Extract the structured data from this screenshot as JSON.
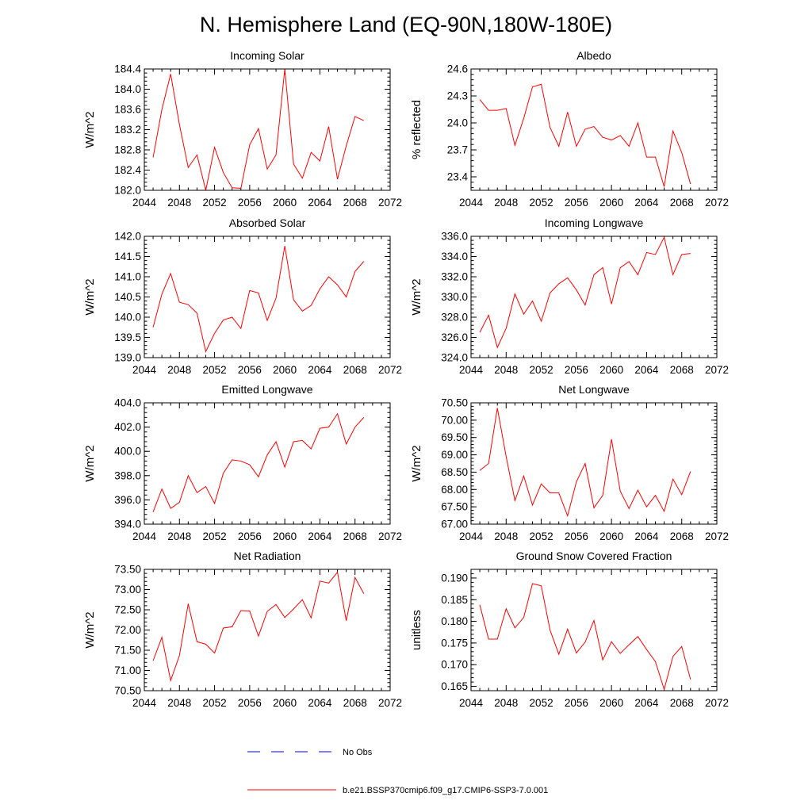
{
  "figure": {
    "title": "N. Hemisphere Land (EQ-90N,180W-180E)",
    "series_color": "#ff0000",
    "obs_color": "#0000ff"
  },
  "legend": {
    "items": [
      {
        "label": "No Obs",
        "color": "#0000ff",
        "style": "dashed"
      },
      {
        "label": "b.e21.BSSP370cmip6.f09_g17.CMIP6-SSP3-7.0.001",
        "color": "#ff0000",
        "style": "solid"
      }
    ]
  },
  "chart_data": [
    {
      "type": "line",
      "title": "Incoming Solar",
      "ylabel": "W/m^2",
      "xlim": [
        2044,
        2072
      ],
      "ylim": [
        182.0,
        184.4
      ],
      "xticks": [
        2044,
        2048,
        2052,
        2056,
        2060,
        2064,
        2068,
        2072
      ],
      "yticks": [
        182.0,
        182.4,
        182.8,
        183.2,
        183.6,
        184.0,
        184.4
      ],
      "ytick_decimals": 1,
      "x": [
        2045,
        2046,
        2047,
        2048,
        2049,
        2050,
        2051,
        2052,
        2053,
        2054,
        2055,
        2056,
        2057,
        2058,
        2059,
        2060,
        2061,
        2062,
        2063,
        2064,
        2065,
        2066,
        2067,
        2068,
        2069
      ],
      "values": [
        182.65,
        183.6,
        184.3,
        183.3,
        182.45,
        182.7,
        182.0,
        182.85,
        182.35,
        182.05,
        182.04,
        182.9,
        183.22,
        182.42,
        182.7,
        184.4,
        182.52,
        182.24,
        182.75,
        182.58,
        183.26,
        182.22,
        182.88,
        183.46,
        183.38
      ]
    },
    {
      "type": "line",
      "title": "Albedo",
      "ylabel": "% reflected",
      "xlim": [
        2044,
        2072
      ],
      "ylim": [
        23.25,
        24.6
      ],
      "xticks": [
        2044,
        2048,
        2052,
        2056,
        2060,
        2064,
        2068,
        2072
      ],
      "yticks": [
        23.4,
        23.7,
        24.0,
        24.3,
        24.6
      ],
      "ytick_decimals": 1,
      "x": [
        2045,
        2046,
        2047,
        2048,
        2049,
        2050,
        2051,
        2052,
        2053,
        2054,
        2055,
        2056,
        2057,
        2058,
        2059,
        2060,
        2061,
        2062,
        2063,
        2064,
        2065,
        2066,
        2067,
        2068,
        2069
      ],
      "values": [
        24.26,
        24.14,
        24.14,
        24.16,
        23.75,
        24.05,
        24.4,
        24.43,
        23.95,
        23.74,
        24.12,
        23.74,
        23.93,
        23.96,
        23.84,
        23.81,
        23.86,
        23.74,
        24.0,
        23.62,
        23.62,
        23.29,
        23.91,
        23.67,
        23.32
      ]
    },
    {
      "type": "line",
      "title": "Absorbed Solar",
      "ylabel": "W/m^2",
      "xlim": [
        2044,
        2072
      ],
      "ylim": [
        139.0,
        142.0
      ],
      "xticks": [
        2044,
        2048,
        2052,
        2056,
        2060,
        2064,
        2068,
        2072
      ],
      "yticks": [
        139.0,
        139.5,
        140.0,
        140.5,
        141.0,
        141.5,
        142.0
      ],
      "ytick_decimals": 1,
      "x": [
        2045,
        2046,
        2047,
        2048,
        2049,
        2050,
        2051,
        2052,
        2053,
        2054,
        2055,
        2056,
        2057,
        2058,
        2059,
        2060,
        2061,
        2062,
        2063,
        2064,
        2065,
        2066,
        2067,
        2068,
        2069
      ],
      "values": [
        139.75,
        140.57,
        141.08,
        140.37,
        140.31,
        140.1,
        139.15,
        139.6,
        139.93,
        140.0,
        139.72,
        140.66,
        140.6,
        139.92,
        140.47,
        141.76,
        140.43,
        140.15,
        140.29,
        140.7,
        141.0,
        140.8,
        140.5,
        141.13,
        141.38
      ]
    },
    {
      "type": "line",
      "title": "Incoming Longwave",
      "ylabel": "W/m^2",
      "xlim": [
        2044,
        2072
      ],
      "ylim": [
        324.0,
        336.0
      ],
      "xticks": [
        2044,
        2048,
        2052,
        2056,
        2060,
        2064,
        2068,
        2072
      ],
      "yticks": [
        324.0,
        326.0,
        328.0,
        330.0,
        332.0,
        334.0,
        336.0
      ],
      "ytick_decimals": 1,
      "x": [
        2045,
        2046,
        2047,
        2048,
        2049,
        2050,
        2051,
        2052,
        2053,
        2054,
        2055,
        2056,
        2057,
        2058,
        2059,
        2060,
        2061,
        2062,
        2063,
        2064,
        2065,
        2066,
        2067,
        2068,
        2069
      ],
      "values": [
        326.5,
        328.2,
        325.0,
        326.9,
        330.3,
        328.3,
        329.6,
        327.6,
        330.4,
        331.3,
        331.9,
        330.7,
        329.2,
        332.2,
        332.9,
        329.3,
        332.9,
        333.5,
        332.2,
        334.4,
        334.2,
        335.9,
        332.2,
        334.2,
        334.3
      ]
    },
    {
      "type": "line",
      "title": "Emitted Longwave",
      "ylabel": "W/m^2",
      "xlim": [
        2044,
        2072
      ],
      "ylim": [
        394.0,
        404.0
      ],
      "xticks": [
        2044,
        2048,
        2052,
        2056,
        2060,
        2064,
        2068,
        2072
      ],
      "yticks": [
        394.0,
        396.0,
        398.0,
        400.0,
        402.0,
        404.0
      ],
      "ytick_decimals": 1,
      "x": [
        2045,
        2046,
        2047,
        2048,
        2049,
        2050,
        2051,
        2052,
        2053,
        2054,
        2055,
        2056,
        2057,
        2058,
        2059,
        2060,
        2061,
        2062,
        2063,
        2064,
        2065,
        2066,
        2067,
        2068,
        2069
      ],
      "values": [
        395.0,
        396.9,
        395.3,
        395.8,
        398.0,
        396.6,
        397.1,
        395.7,
        398.2,
        399.3,
        399.2,
        398.9,
        397.9,
        399.7,
        400.8,
        398.7,
        400.8,
        400.9,
        400.2,
        401.9,
        402.0,
        403.1,
        400.6,
        402.0,
        402.8
      ]
    },
    {
      "type": "line",
      "title": "Net Longwave",
      "ylabel": "W/m^2",
      "xlim": [
        2044,
        2072
      ],
      "ylim": [
        67.0,
        70.5
      ],
      "xticks": [
        2044,
        2048,
        2052,
        2056,
        2060,
        2064,
        2068,
        2072
      ],
      "yticks": [
        67.0,
        67.5,
        68.0,
        68.5,
        69.0,
        69.5,
        70.0,
        70.5
      ],
      "ytick_decimals": 2,
      "x": [
        2045,
        2046,
        2047,
        2048,
        2049,
        2050,
        2051,
        2052,
        2053,
        2054,
        2055,
        2056,
        2057,
        2058,
        2059,
        2060,
        2061,
        2062,
        2063,
        2064,
        2065,
        2066,
        2067,
        2068,
        2069
      ],
      "values": [
        68.55,
        68.75,
        70.35,
        68.95,
        67.68,
        68.39,
        67.55,
        68.16,
        67.9,
        67.9,
        67.24,
        68.22,
        68.75,
        67.47,
        67.83,
        69.45,
        67.95,
        67.45,
        67.98,
        67.5,
        67.83,
        67.37,
        68.3,
        67.85,
        68.52
      ]
    },
    {
      "type": "line",
      "title": "Net Radiation",
      "ylabel": "W/m^2",
      "xlim": [
        2044,
        2072
      ],
      "ylim": [
        70.5,
        73.5
      ],
      "xticks": [
        2044,
        2048,
        2052,
        2056,
        2060,
        2064,
        2068,
        2072
      ],
      "yticks": [
        70.5,
        71.0,
        71.5,
        72.0,
        72.5,
        73.0,
        73.5
      ],
      "ytick_decimals": 2,
      "x": [
        2045,
        2046,
        2047,
        2048,
        2049,
        2050,
        2051,
        2052,
        2053,
        2054,
        2055,
        2056,
        2057,
        2058,
        2059,
        2060,
        2061,
        2062,
        2063,
        2064,
        2065,
        2066,
        2067,
        2068,
        2069
      ],
      "values": [
        71.24,
        71.82,
        70.75,
        71.37,
        72.65,
        71.71,
        71.65,
        71.43,
        72.05,
        72.08,
        72.48,
        72.47,
        71.85,
        72.46,
        72.63,
        72.31,
        72.52,
        72.75,
        72.3,
        73.21,
        73.16,
        73.43,
        72.23,
        73.3,
        72.9
      ]
    },
    {
      "type": "line",
      "title": "Ground Snow Covered Fraction",
      "ylabel": "unitless",
      "xlim": [
        2044,
        2072
      ],
      "ylim": [
        0.164,
        0.192
      ],
      "xticks": [
        2044,
        2048,
        2052,
        2056,
        2060,
        2064,
        2068,
        2072
      ],
      "yticks": [
        0.165,
        0.17,
        0.175,
        0.18,
        0.185,
        0.19
      ],
      "ytick_decimals": 3,
      "x": [
        2045,
        2046,
        2047,
        2048,
        2049,
        2050,
        2051,
        2052,
        2053,
        2054,
        2055,
        2056,
        2057,
        2058,
        2059,
        2060,
        2061,
        2062,
        2063,
        2064,
        2065,
        2066,
        2067,
        2068,
        2069
      ],
      "values": [
        0.1838,
        0.1759,
        0.1759,
        0.1829,
        0.1785,
        0.1809,
        0.1887,
        0.1882,
        0.178,
        0.1724,
        0.1782,
        0.1727,
        0.1752,
        0.1802,
        0.1711,
        0.1753,
        0.1726,
        0.1746,
        0.1765,
        0.1735,
        0.1707,
        0.1643,
        0.1719,
        0.1742,
        0.1666
      ]
    }
  ]
}
